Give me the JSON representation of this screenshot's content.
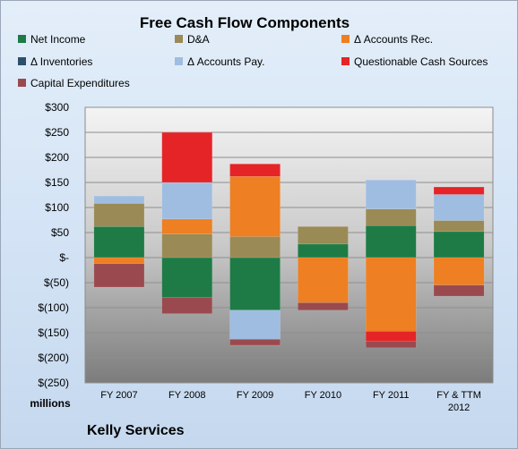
{
  "chart_data": {
    "type": "bar",
    "stacked": true,
    "title": "Free Cash Flow Components",
    "categories": [
      "FY 2007",
      "FY 2008",
      "FY 2009",
      "FY 2010",
      "FY 2011",
      "FY & TTM 2012"
    ],
    "category_lines": [
      [
        "FY 2007"
      ],
      [
        "FY 2008"
      ],
      [
        "FY 2009"
      ],
      [
        "FY 2010"
      ],
      [
        "FY 2011"
      ],
      [
        "FY & TTM",
        "2012"
      ]
    ],
    "series": [
      {
        "name": "Net Income",
        "color": "#1e7b45",
        "values": [
          62,
          -80,
          -105,
          27,
          64,
          52
        ]
      },
      {
        "name": "D&A",
        "color": "#9a8a55",
        "values": [
          46,
          47,
          42,
          35,
          33,
          22
        ]
      },
      {
        "name": "Δ Accounts Rec.",
        "color": "#ee7f22",
        "values": [
          -12,
          30,
          120,
          -90,
          -147,
          -55
        ]
      },
      {
        "name": "Δ Inventories",
        "color": "#2d4f6c",
        "values": [
          0,
          0,
          0,
          0,
          0,
          0
        ]
      },
      {
        "name": "Δ Accounts Pay.",
        "color": "#9fbde0",
        "values": [
          15,
          73,
          -58,
          0,
          58,
          52
        ]
      },
      {
        "name": "Questionable Cash Sources",
        "color": "#e52428",
        "values": [
          0,
          100,
          25,
          0,
          -20,
          15
        ]
      },
      {
        "name": "Capital Expenditures",
        "color": "#9a4a4e",
        "values": [
          -47,
          -32,
          -12,
          -15,
          -13,
          -22
        ]
      }
    ],
    "yticks": [
      300,
      250,
      200,
      150,
      100,
      50,
      0,
      -50,
      -100,
      -150,
      -200,
      -250
    ],
    "ytick_labels": [
      "$300",
      "$250",
      "$200",
      "$150",
      "$100",
      "$50",
      "$-",
      "$(50)",
      "$(100)",
      "$(150)",
      "$(200)",
      "$(250)"
    ],
    "ylim": [
      -250,
      300
    ],
    "units_label": "millions",
    "company": "Kelly Services",
    "legend_position": "top",
    "grid": true
  }
}
